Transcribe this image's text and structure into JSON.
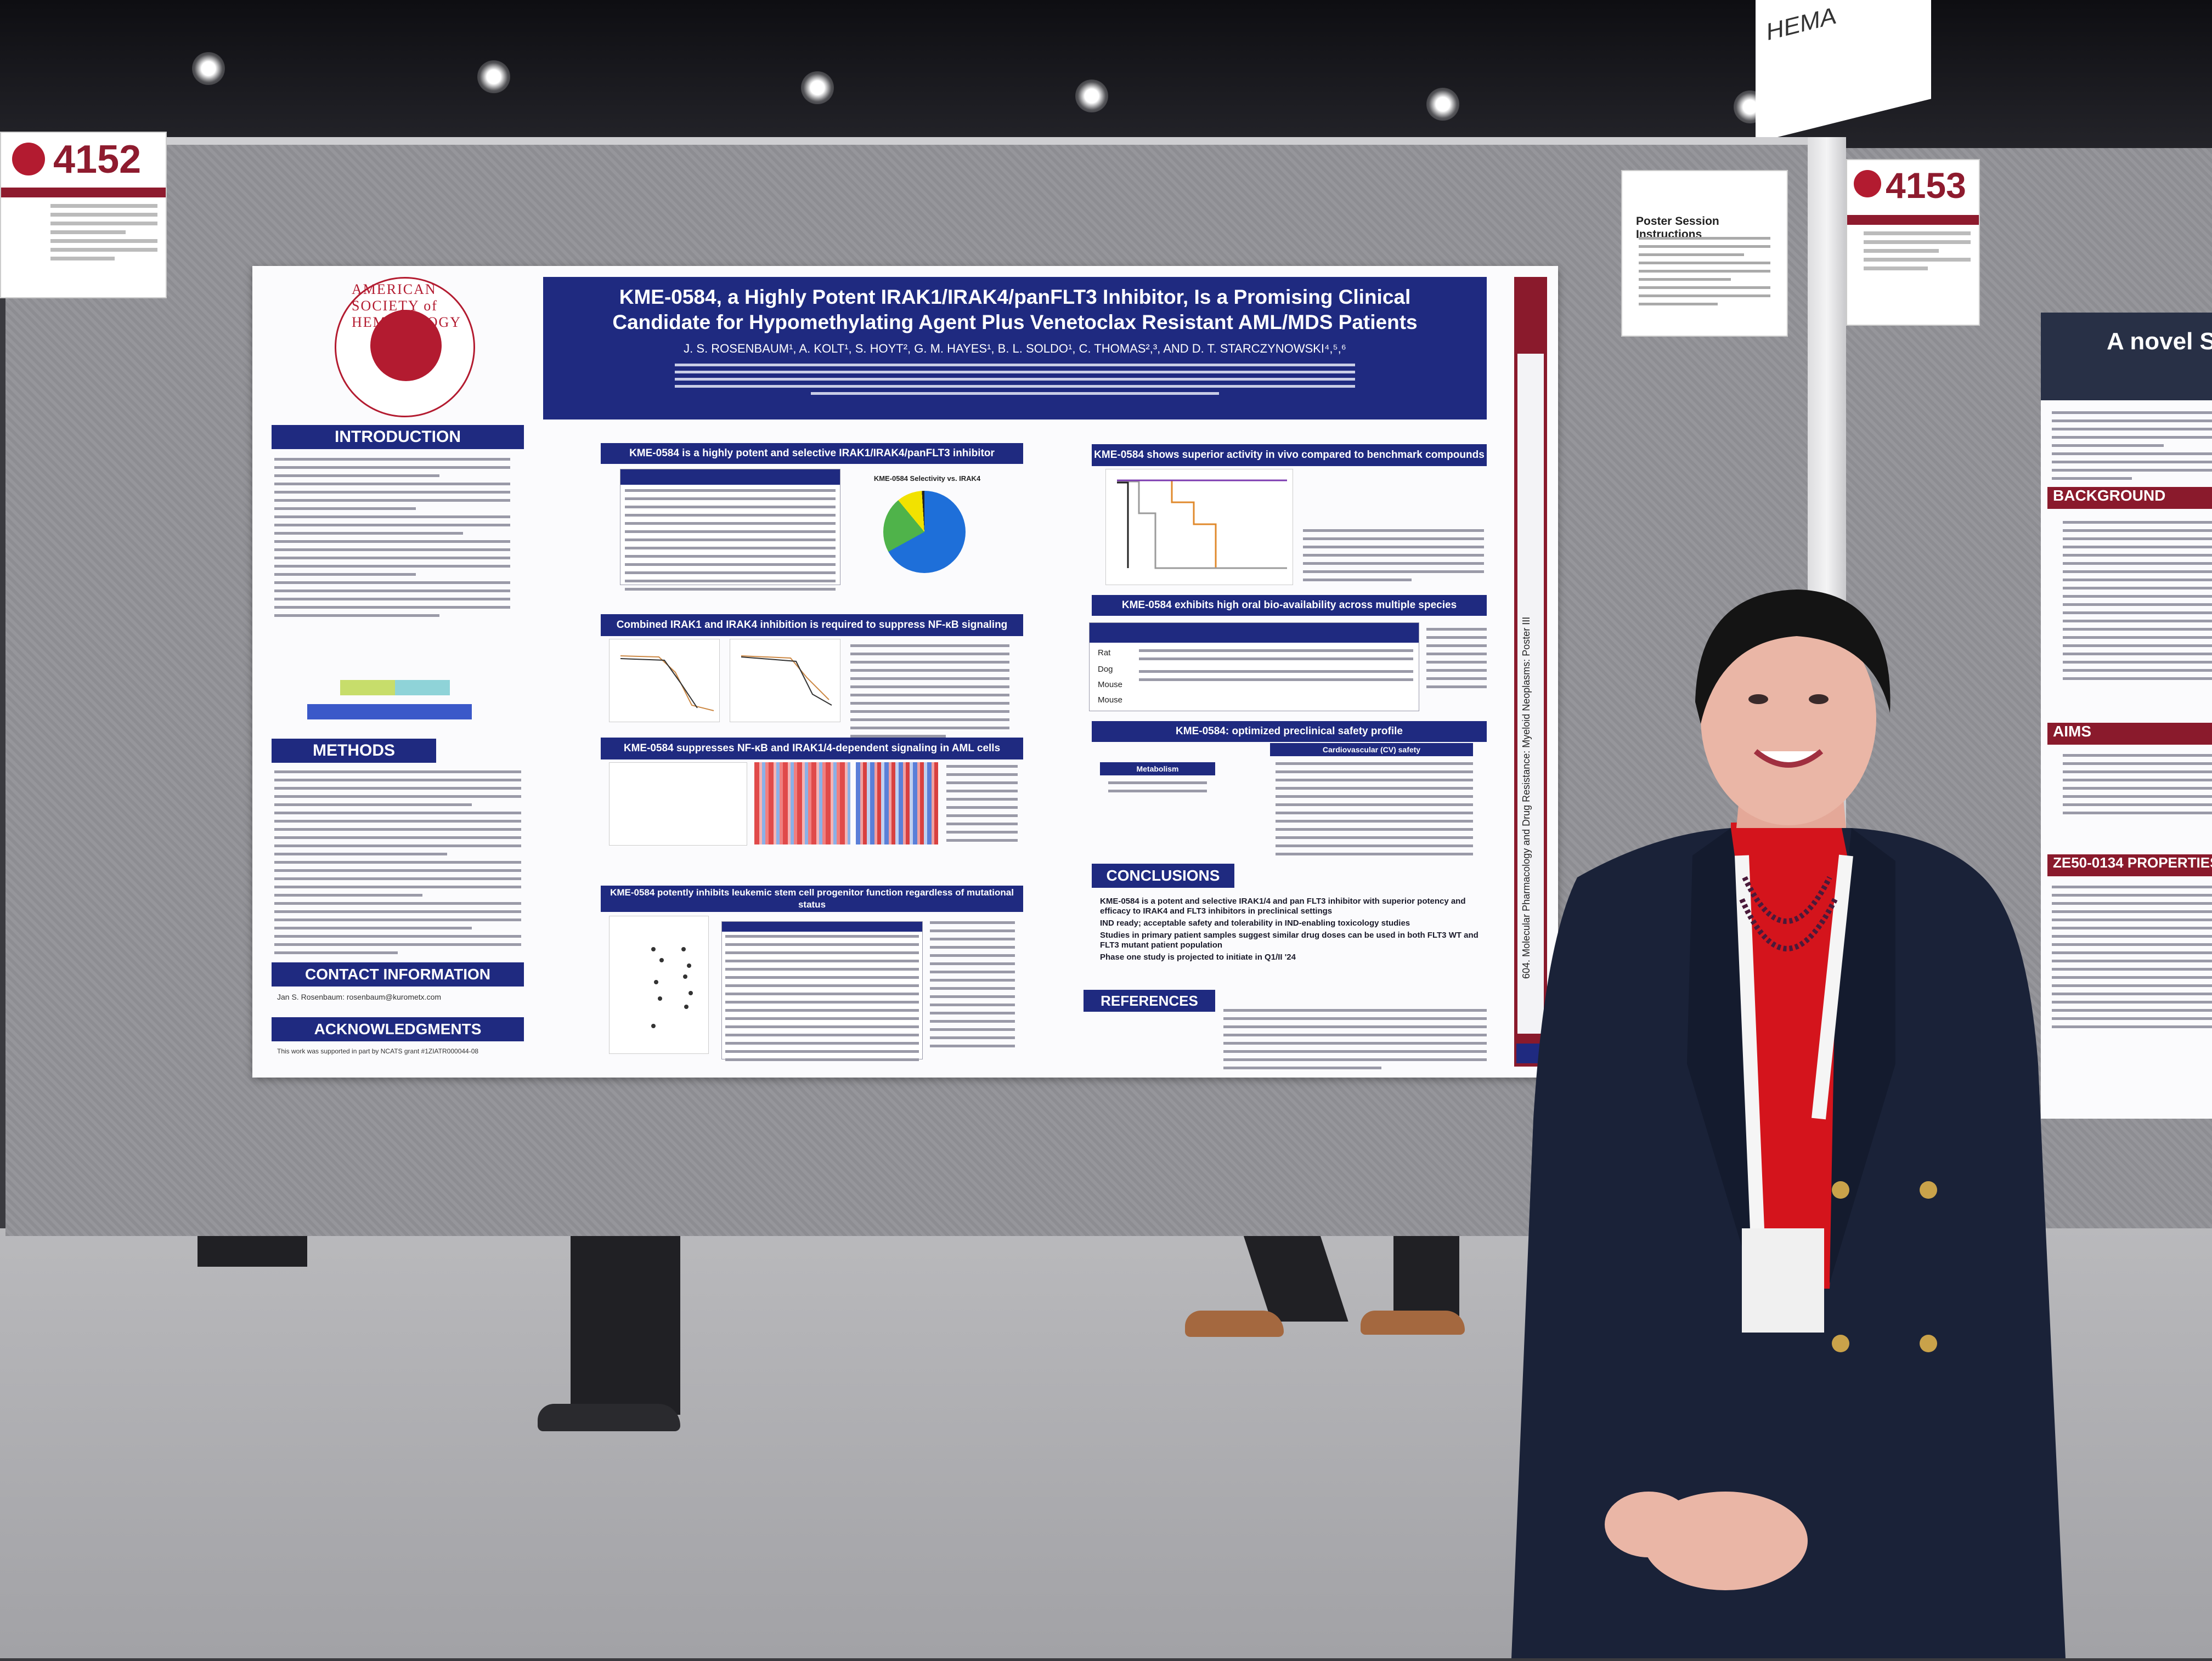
{
  "signs": {
    "board_left_number": "4152",
    "board_right_number": "4153",
    "instructions_title": "Poster Session Instructions",
    "hanging_sign_text": "HEMA"
  },
  "poster": {
    "title_line1": "KME-0584, a Highly Potent IRAK1/IRAK4/panFLT3 Inhibitor, Is a Promising Clinical",
    "title_line2": "Candidate for Hypomethylating Agent Plus Venetoclax Resistant AML/MDS Patients",
    "authors": "J. S. ROSENBAUM¹, A. KOLT¹, S. HOYT², G. M. HAYES¹, B. L. SOLDO¹, C. THOMAS²,³, AND D. T. STARCZYNOWSKI⁴,⁵,⁶",
    "society_ring_text": "AMERICAN SOCIETY of HEMATOLOGY",
    "sidebar_text": "604. Molecular Pharmacology and Drug Resistance: Myeloid Neoplasms: Poster III",
    "sections_left": {
      "introduction": "INTRODUCTION",
      "methods": "METHODS",
      "contact": "CONTACT INFORMATION",
      "contact_text": "Jan S. Rosenbaum: rosenbaum@kurometx.com",
      "acknowledgments": "ACKNOWLEDGMENTS",
      "ack_text": "This work was supported in part by NCATS grant #1ZIATR000044-08"
    },
    "sections_mid": {
      "s1": "KME-0584 is a highly potent and selective IRAK1/IRAK4/panFLT3 inhibitor",
      "s2": "Combined IRAK1 and IRAK4 inhibition is required to suppress NF-κB signaling",
      "s3": "KME-0584 suppresses NF-κB and IRAK1/4-dependent signaling in AML cells",
      "s4": "KME-0584 potently inhibits leukemic stem cell progenitor function regardless of mutational status",
      "pie_title": "KME-0584 Selectivity vs. IRAK4"
    },
    "sections_right": {
      "r1": "KME-0584 shows superior activity in vivo compared to benchmark compounds",
      "r2": "KME-0584 exhibits high oral bio-availability across multiple species",
      "r3": "KME-0584: optimized preclinical safety profile",
      "conclusions": "CONCLUSIONS",
      "conclusion_items": [
        "KME-0584 is a potent and selective IRAK1/4 and pan FLT3 inhibitor with superior potency and efficacy to IRAK4 and FLT3 inhibitors in preclinical settings",
        "IND ready; acceptable safety and tolerability in IND-enabling toxicology studies",
        "Studies in primary patient samples suggest similar drug doses can be used in both FLT3 WT and FLT3 mutant patient population",
        "Phase one study is projected to initiate in Q1/II '24"
      ],
      "references": "REFERENCES",
      "species": [
        "Rat",
        "Dog",
        "Mouse",
        "Mouse"
      ],
      "metabolism": "Metabolism",
      "cv_safety": "Cardiovascular (CV) safety"
    }
  },
  "right_poster": {
    "title": "A novel S",
    "background": "BACKGROUND",
    "aims": "AIMS",
    "properties": "ZE50-0134 PROPERTIES"
  },
  "colors": {
    "ash_red": "#b31b30",
    "poster_navy": "#1f2a80",
    "maroon": "#8a1a2c",
    "jacket": "#1a2238",
    "blouse": "#d4141c"
  }
}
